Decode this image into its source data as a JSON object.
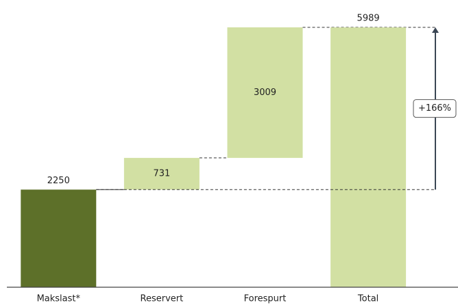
{
  "chart_data": {
    "type": "waterfall",
    "categories": [
      "Makslast*",
      "Reservert",
      "Forespurt",
      "Total"
    ],
    "values": [
      2250,
      731,
      3009,
      5989
    ],
    "measures": [
      "absolute",
      "relative",
      "relative",
      "total"
    ],
    "colors": [
      "#5d7029",
      "#d2e0a3",
      "#d2e0a3",
      "#d2e0a3"
    ],
    "annotation": {
      "text": "+166%"
    }
  }
}
